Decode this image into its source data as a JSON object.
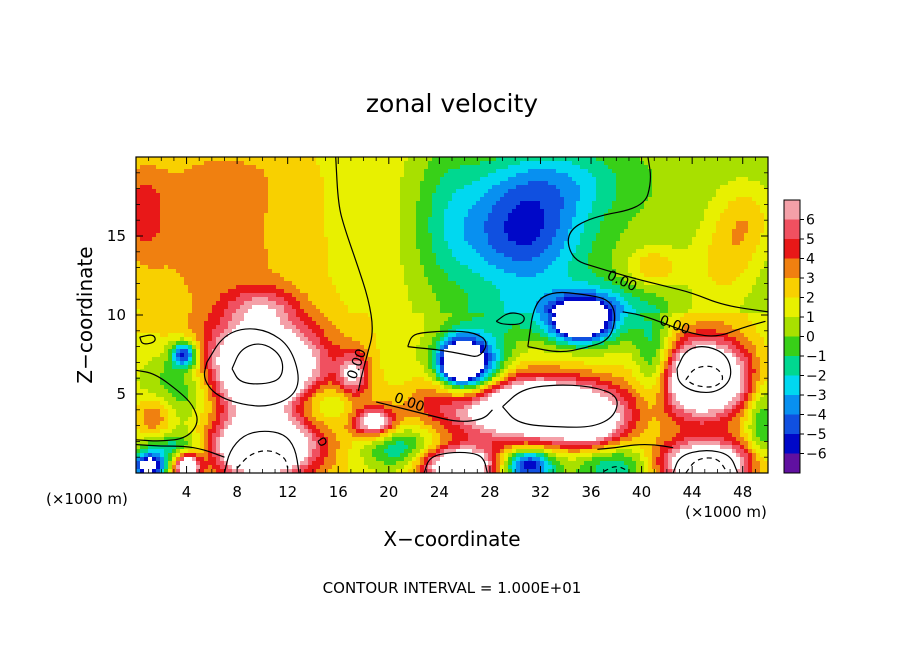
{
  "chart_data": {
    "type": "heatmap",
    "title": "zonal velocity",
    "xlabel": "X−coordinate",
    "ylabel": "Z−coordinate",
    "x_unit": "(×1000 m)",
    "z_unit": "(×1000 m)",
    "footer": "CONTOUR INTERVAL = 1.000E+01",
    "xlim": [
      0,
      50
    ],
    "ylim": [
      0,
      20
    ],
    "x_ticks": [
      4,
      8,
      12,
      16,
      20,
      24,
      28,
      32,
      36,
      40,
      44,
      48
    ],
    "y_ticks": [
      5,
      10,
      15
    ],
    "x_tick_labels": [
      "4",
      "8",
      "12",
      "16",
      "20",
      "24",
      "28",
      "32",
      "36",
      "40",
      "44",
      "48"
    ],
    "y_tick_labels": [
      "5",
      "10",
      "15"
    ],
    "colorbar": {
      "levels": [
        6,
        5,
        4,
        3,
        2,
        1,
        0,
        -1,
        -2,
        -3,
        -4,
        -5,
        -6
      ],
      "labels": [
        "6",
        "5",
        "4",
        "3",
        "2",
        "1",
        "0",
        "−1",
        "−2",
        "−3",
        "−4",
        "−5",
        "−6"
      ],
      "colors": [
        "#f4a0a8",
        "#f05060",
        "#e81818",
        "#f08010",
        "#f8d000",
        "#e8f000",
        "#a8e000",
        "#38d018",
        "#00d890",
        "#00d8f0",
        "#0890f0",
        "#1050e0",
        "#0008c8",
        "#6010a0"
      ]
    },
    "contour_labels": [
      {
        "text": "0.00",
        "x": 17.8,
        "z": 6.8,
        "angle": -70
      },
      {
        "text": "0.00",
        "x": 21.5,
        "z": 4.2,
        "angle": 20
      },
      {
        "text": "0.00",
        "x": 38.3,
        "z": 11.9,
        "angle": 25
      },
      {
        "text": "0.00",
        "x": 42.5,
        "z": 9.1,
        "angle": 20
      }
    ],
    "blobs": [
      {
        "x": 10,
        "z": 6.5,
        "rx": 4.6,
        "rz": 2.8,
        "v": 12
      },
      {
        "x": 10,
        "z": 1.6,
        "rx": 4.0,
        "rz": 1.8,
        "v": 11
      },
      {
        "x": 32.5,
        "z": 4.0,
        "rx": 5.8,
        "rz": 1.9,
        "v": 11
      },
      {
        "x": 36.0,
        "z": 2.8,
        "rx": 2.5,
        "rz": 1.4,
        "v": 4
      },
      {
        "x": 45,
        "z": 6.0,
        "rx": 3.6,
        "rz": 2.5,
        "v": 11
      },
      {
        "x": 45,
        "z": 0.6,
        "rx": 4.2,
        "rz": 1.5,
        "v": 9
      },
      {
        "x": 25.5,
        "z": 0.5,
        "rx": 3.2,
        "rz": 1.2,
        "v": 9
      },
      {
        "x": 18.8,
        "z": 3.2,
        "rx": 1.6,
        "rz": 0.9,
        "v": 7
      },
      {
        "x": 17.2,
        "z": 6.2,
        "rx": 1.2,
        "rz": 1.4,
        "v": 5
      },
      {
        "x": 10.0,
        "z": 10.5,
        "rx": 2.8,
        "rz": 1.3,
        "v": 3
      },
      {
        "x": 26,
        "z": 4.5,
        "rx": 6,
        "rz": 2,
        "v": 3
      },
      {
        "x": 41.0,
        "z": 13.0,
        "rx": 2.0,
        "rz": 1.2,
        "v": 2.5
      },
      {
        "x": 48.2,
        "z": 16.0,
        "rx": 2.5,
        "rz": 2.5,
        "v": 2.5
      },
      {
        "x": 0.5,
        "z": 16.5,
        "rx": 2.0,
        "rz": 3.0,
        "v": 2.5
      },
      {
        "x": 1.5,
        "z": 3.5,
        "rx": 1.5,
        "rz": 1.5,
        "v": 3
      },
      {
        "x": 46.5,
        "z": 13.0,
        "rx": 2.5,
        "rz": 2.5,
        "v": 2
      },
      {
        "x": 6,
        "z": 14,
        "rx": 6,
        "rz": 5,
        "v": 1.5
      },
      {
        "x": 6.5,
        "z": 18.5,
        "rx": 5,
        "rz": 2,
        "v": 1
      },
      {
        "x": 30.5,
        "z": 15.0,
        "rx": 5.0,
        "rz": 3.5,
        "v": -6
      },
      {
        "x": 33,
        "z": 18.5,
        "rx": 6,
        "rz": 2.5,
        "v": -3
      },
      {
        "x": 24.5,
        "z": 16,
        "rx": 3,
        "rz": 6,
        "v": -2
      },
      {
        "x": 36,
        "z": 10.0,
        "rx": 3.5,
        "rz": 1.8,
        "v": -6
      },
      {
        "x": 35.0,
        "z": 9.6,
        "rx": 1.9,
        "rz": 1.1,
        "v": -9
      },
      {
        "x": 26.5,
        "z": 6.8,
        "rx": 2.5,
        "rz": 2.0,
        "v": -9
      },
      {
        "x": 25.5,
        "z": 7.0,
        "rx": 1.4,
        "rz": 1.2,
        "v": -9
      },
      {
        "x": 4,
        "z": 5.5,
        "rx": 3.5,
        "rz": 2.5,
        "v": -4
      },
      {
        "x": 3.8,
        "z": 7.5,
        "rx": 1.0,
        "rz": 0.8,
        "v": -7
      },
      {
        "x": 14.5,
        "z": 4.5,
        "rx": 3.0,
        "rz": 1.5,
        "v": -3
      },
      {
        "x": 21,
        "z": 1.5,
        "rx": 3,
        "rz": 1.5,
        "v": -4
      },
      {
        "x": 3,
        "z": 1.5,
        "rx": 3,
        "rz": 1.2,
        "v": -4
      },
      {
        "x": 1.0,
        "z": 0.4,
        "rx": 1.2,
        "rz": 0.8,
        "v": -9
      },
      {
        "x": 4.0,
        "z": 0.5,
        "rx": 1.0,
        "rz": 0.8,
        "v": 9
      },
      {
        "x": 38,
        "z": 0.5,
        "rx": 3.5,
        "rz": 1.3,
        "v": -4
      },
      {
        "x": 31,
        "z": 0.5,
        "rx": 2,
        "rz": 1.0,
        "v": -8
      },
      {
        "x": 41,
        "z": 7,
        "rx": 1.5,
        "rz": 3,
        "v": -4
      },
      {
        "x": 49.5,
        "z": 3,
        "rx": 1.2,
        "rz": 3,
        "v": -3
      },
      {
        "x": 21,
        "z": 6,
        "rx": 2,
        "rz": 2.5,
        "v": -1
      },
      {
        "x": 30,
        "z": 10,
        "rx": 4,
        "rz": 2,
        "v": -2
      }
    ],
    "contour_paths": [
      {
        "style": "solid",
        "points": [
          [
            15.8,
            20
          ],
          [
            16.0,
            17.0
          ],
          [
            16.5,
            15.5
          ],
          [
            17.5,
            13.2
          ],
          [
            18.4,
            11.0
          ],
          [
            18.8,
            9.0
          ],
          [
            18.3,
            7.5
          ],
          [
            17.8,
            6.0
          ],
          [
            17.6,
            5.2
          ]
        ]
      },
      {
        "style": "solid",
        "points": [
          [
            40.5,
            20
          ],
          [
            40.8,
            18.5
          ],
          [
            40.2,
            16.8
          ],
          [
            36.0,
            16.2
          ],
          [
            34.0,
            15.2
          ],
          [
            34.5,
            13.5
          ],
          [
            36.5,
            13.0
          ],
          [
            39.0,
            12.4
          ],
          [
            42.0,
            11.8
          ],
          [
            44.0,
            11.4
          ],
          [
            46.5,
            10.6
          ],
          [
            50,
            10.2
          ]
        ]
      },
      {
        "style": "solid",
        "points": [
          [
            19.0,
            4.5
          ],
          [
            21.0,
            4.1
          ],
          [
            23.0,
            3.7
          ],
          [
            25.5,
            3.2
          ],
          [
            27.5,
            3.4
          ],
          [
            28.2,
            4.0
          ]
        ]
      },
      {
        "style": "solid",
        "points": [
          [
            38.5,
            10.2
          ],
          [
            40.0,
            10.0
          ],
          [
            42.0,
            9.4
          ],
          [
            44.0,
            8.8
          ],
          [
            46.0,
            8.6
          ],
          [
            48.0,
            9.2
          ],
          [
            49.8,
            9.6
          ]
        ]
      },
      {
        "style": "solid",
        "points": [
          [
            5.6,
            7.0
          ],
          [
            6.8,
            8.6
          ],
          [
            8.5,
            9.2
          ],
          [
            10.5,
            9.0
          ],
          [
            12.2,
            8.0
          ],
          [
            13.0,
            6.0
          ],
          [
            12.4,
            4.8
          ],
          [
            10.5,
            4.2
          ],
          [
            8.5,
            4.3
          ],
          [
            6.3,
            4.9
          ],
          [
            5.3,
            6.0
          ],
          [
            5.6,
            7.0
          ]
        ]
      },
      {
        "style": "solid",
        "points": [
          [
            7.6,
            6.6
          ],
          [
            8.3,
            7.9
          ],
          [
            10.0,
            8.3
          ],
          [
            11.6,
            7.4
          ],
          [
            11.6,
            6.0
          ],
          [
            10.2,
            5.6
          ],
          [
            8.2,
            5.7
          ],
          [
            7.6,
            6.6
          ]
        ]
      },
      {
        "style": "solid",
        "points": [
          [
            0.3,
            8.6
          ],
          [
            1.4,
            8.8
          ],
          [
            1.6,
            8.3
          ],
          [
            0.5,
            8.1
          ],
          [
            0.3,
            8.6
          ]
        ]
      },
      {
        "style": "solid",
        "points": [
          [
            0,
            6.5
          ],
          [
            1.5,
            6.3
          ],
          [
            3.5,
            5.1
          ],
          [
            4.5,
            4.3
          ],
          [
            5.0,
            3.2
          ],
          [
            4.0,
            2.2
          ],
          [
            2.0,
            2.0
          ],
          [
            0,
            2.1
          ]
        ]
      },
      {
        "style": "solid",
        "points": [
          [
            21.5,
            8.0
          ],
          [
            21.8,
            8.7
          ],
          [
            22.7,
            8.9
          ],
          [
            24.8,
            9.0
          ],
          [
            26.8,
            8.9
          ],
          [
            27.9,
            8.3
          ],
          [
            27.2,
            7.3
          ],
          [
            26.0,
            7.5
          ],
          [
            24.0,
            7.8
          ],
          [
            22.5,
            7.9
          ],
          [
            21.5,
            8.0
          ]
        ]
      },
      {
        "style": "solid",
        "points": [
          [
            28.5,
            9.6
          ],
          [
            29.5,
            10.2
          ],
          [
            30.8,
            10.0
          ],
          [
            30.6,
            9.4
          ],
          [
            29.0,
            9.4
          ],
          [
            28.5,
            9.6
          ]
        ]
      },
      {
        "style": "solid",
        "points": [
          [
            31.0,
            8.0
          ],
          [
            31.5,
            10.8
          ],
          [
            33.0,
            11.5
          ],
          [
            35.5,
            11.3
          ],
          [
            37.4,
            11.0
          ],
          [
            38.0,
            10.0
          ],
          [
            37.5,
            8.4
          ],
          [
            35.5,
            7.9
          ],
          [
            33.5,
            7.6
          ],
          [
            31.0,
            8.0
          ]
        ]
      },
      {
        "style": "solid",
        "points": [
          [
            42.8,
            6.6
          ],
          [
            43.5,
            7.8
          ],
          [
            45.0,
            8.1
          ],
          [
            46.8,
            7.5
          ],
          [
            47.2,
            6.0
          ],
          [
            46.0,
            5.1
          ],
          [
            44.2,
            5.1
          ],
          [
            42.9,
            5.7
          ],
          [
            42.8,
            6.6
          ]
        ]
      },
      {
        "style": "solid",
        "points": [
          [
            29.0,
            4.2
          ],
          [
            30.5,
            5.3
          ],
          [
            33.0,
            5.6
          ],
          [
            36.0,
            5.5
          ],
          [
            38.2,
            4.9
          ],
          [
            37.9,
            3.6
          ],
          [
            36.2,
            2.9
          ],
          [
            33.5,
            2.9
          ],
          [
            30.2,
            3.1
          ],
          [
            29.0,
            4.2
          ]
        ]
      },
      {
        "style": "solid",
        "points": [
          [
            7.0,
            0
          ],
          [
            7.4,
            1.4
          ],
          [
            8.5,
            2.4
          ],
          [
            10.0,
            2.7
          ],
          [
            11.7,
            2.5
          ],
          [
            12.6,
            1.6
          ],
          [
            12.9,
            0
          ]
        ]
      },
      {
        "style": "solid",
        "points": [
          [
            22.8,
            0
          ],
          [
            23.2,
            1.0
          ],
          [
            24.7,
            1.3
          ],
          [
            26.5,
            1.3
          ],
          [
            27.5,
            1.0
          ],
          [
            27.8,
            0
          ]
        ]
      },
      {
        "style": "solid",
        "points": [
          [
            42.5,
            0
          ],
          [
            43.0,
            1.1
          ],
          [
            45.0,
            1.5
          ],
          [
            47.0,
            1.2
          ],
          [
            47.6,
            0
          ]
        ]
      },
      {
        "style": "solid",
        "points": [
          [
            0,
            1.8
          ],
          [
            2.0,
            1.7
          ],
          [
            3.8,
            1.7
          ],
          [
            5.3,
            1.5
          ],
          [
            7.0,
            1.0
          ]
        ]
      },
      {
        "style": "solid",
        "points": [
          [
            14.4,
            2.0
          ],
          [
            14.9,
            2.3
          ],
          [
            15.1,
            1.9
          ],
          [
            14.6,
            1.7
          ],
          [
            14.4,
            2.0
          ]
        ]
      },
      {
        "style": "solid",
        "points": [
          [
            36.5,
            1.5
          ],
          [
            38.0,
            1.6
          ],
          [
            39.5,
            1.8
          ],
          [
            41.0,
            1.8
          ],
          [
            42.5,
            1.6
          ]
        ]
      },
      {
        "style": "dashed",
        "points": [
          [
            8.0,
            0.3
          ],
          [
            9.0,
            1.2
          ],
          [
            10.5,
            1.5
          ],
          [
            11.8,
            1.0
          ],
          [
            12.0,
            0.3
          ]
        ]
      },
      {
        "style": "dashed",
        "points": [
          [
            43.5,
            5.9
          ],
          [
            44.2,
            6.7
          ],
          [
            45.8,
            6.8
          ],
          [
            46.6,
            6.0
          ],
          [
            45.8,
            5.4
          ],
          [
            44.3,
            5.5
          ],
          [
            43.5,
            5.9
          ]
        ]
      },
      {
        "style": "dashed",
        "points": [
          [
            43.5,
            0
          ],
          [
            44.3,
            0.9
          ],
          [
            46.0,
            1.0
          ],
          [
            46.8,
            0
          ]
        ]
      },
      {
        "style": "dashed",
        "points": [
          [
            37.0,
            0.1
          ],
          [
            38.0,
            0.5
          ],
          [
            39.0,
            0.1
          ]
        ]
      }
    ]
  }
}
